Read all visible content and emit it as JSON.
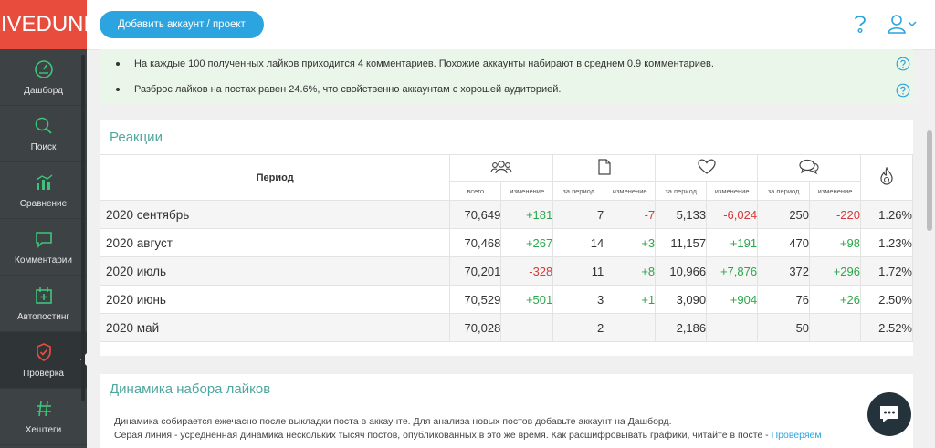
{
  "logo": "LIVEDUNE",
  "nav": [
    {
      "label": "Дашборд",
      "icon": "dashboard-icon"
    },
    {
      "label": "Поиск",
      "icon": "search-icon"
    },
    {
      "label": "Сравнение",
      "icon": "chart-icon"
    },
    {
      "label": "Комментарии",
      "icon": "comment-icon"
    },
    {
      "label": "Автопостинг",
      "icon": "calendar-icon"
    },
    {
      "label": "Проверка",
      "icon": "shield-check-icon"
    },
    {
      "label": "Хештеги",
      "icon": "hashtag-icon"
    }
  ],
  "topbar": {
    "add_button": "Добавить аккаунт / проект"
  },
  "insights": [
    "На каждые 100 полученных лайков приходится 4 комментариев. Похожие аккаунты набирают в среднем 0.9 комментариев.",
    "Разброс лайков на постах равен 24.6%, что свойственно аккаунтам с хорошей аудиторией."
  ],
  "reactions": {
    "title": "Реакции",
    "period_header": "Период",
    "sub_headers": [
      "всего",
      "изменение",
      "за период",
      "изменение",
      "за период",
      "изменение",
      "за период",
      "изменение"
    ],
    "rows": [
      {
        "period": "2020 сентябрь",
        "followers": "70,649",
        "followers_change": "+181",
        "posts": "7",
        "posts_change": "-7",
        "likes": "5,133",
        "likes_change": "-6,024",
        "comments": "250",
        "comments_change": "-220",
        "er": "1.26%"
      },
      {
        "period": "2020 август",
        "followers": "70,468",
        "followers_change": "+267",
        "posts": "14",
        "posts_change": "+3",
        "likes": "11,157",
        "likes_change": "+191",
        "comments": "470",
        "comments_change": "+98",
        "er": "1.23%"
      },
      {
        "period": "2020 июль",
        "followers": "70,201",
        "followers_change": "-328",
        "posts": "11",
        "posts_change": "+8",
        "likes": "10,966",
        "likes_change": "+7,876",
        "comments": "372",
        "comments_change": "+296",
        "er": "1.72%"
      },
      {
        "period": "2020 июнь",
        "followers": "70,529",
        "followers_change": "+501",
        "posts": "3",
        "posts_change": "+1",
        "likes": "3,090",
        "likes_change": "+904",
        "comments": "76",
        "comments_change": "+26",
        "er": "2.50%"
      },
      {
        "period": "2020 май",
        "followers": "70,028",
        "followers_change": "",
        "posts": "2",
        "posts_change": "",
        "likes": "2,186",
        "likes_change": "",
        "comments": "50",
        "comments_change": "",
        "er": "2.52%"
      }
    ]
  },
  "likes_dynamics": {
    "title": "Динамика набора лайков",
    "line1": "Динамика собирается ежечасно после выкладки поста в аккаунте. Для анализа новых постов добавьте аккаунт на Дашборд.",
    "line2": "Серая линия - усредненная динамика нескольких тысяч постов, опубликованных в это же время. Как расшифровывать графики, читайте в посте - ",
    "link": "Проверяем"
  }
}
